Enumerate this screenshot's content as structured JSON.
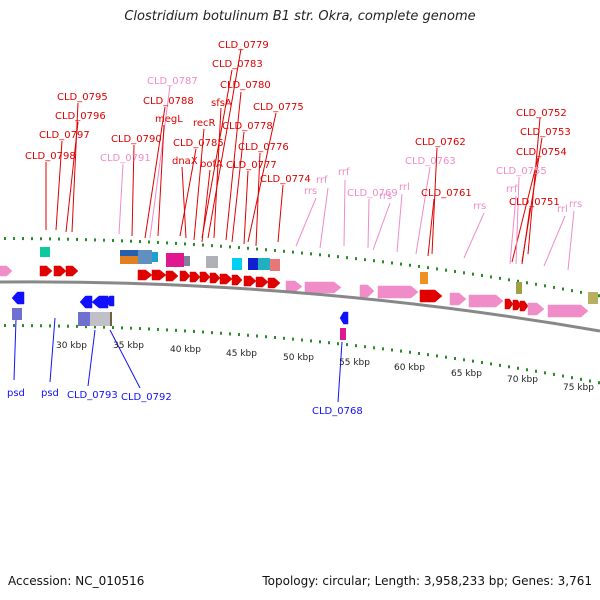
{
  "title": "Clostridium botulinum B1 str. Okra, complete genome",
  "footer": {
    "accession": "Accession: NC_010516",
    "summary": "Topology: circular; Length: 3,958,233 bp; Genes: 3,761"
  },
  "colors": {
    "red": "#e00000",
    "pink": "#f08cc8",
    "blue": "#1010ff",
    "backbone": "#888888",
    "tick": "#2a8a2a"
  },
  "ticks": [
    {
      "label": "30 kbp",
      "kb": 30
    },
    {
      "label": "35 kbp",
      "kb": 35
    },
    {
      "label": "40 kbp",
      "kb": 40
    },
    {
      "label": "45 kbp",
      "kb": 45
    },
    {
      "label": "50 kbp",
      "kb": 50
    },
    {
      "label": "55 kbp",
      "kb": 55
    },
    {
      "label": "60 kbp",
      "kb": 60
    },
    {
      "label": "65 kbp",
      "kb": 65
    },
    {
      "label": "70 kbp",
      "kb": 70
    },
    {
      "label": "75 kbp",
      "kb": 75
    }
  ],
  "top_labels": [
    {
      "text": "CLD_0779",
      "kind": "red"
    },
    {
      "text": "CLD_0783",
      "kind": "red"
    },
    {
      "text": "CLD_0787",
      "kind": "pink"
    },
    {
      "text": "CLD_0780",
      "kind": "red"
    },
    {
      "text": "CLD_0795",
      "kind": "red"
    },
    {
      "text": "CLD_0788",
      "kind": "red"
    },
    {
      "text": "sfsA",
      "kind": "red"
    },
    {
      "text": "CLD_0775",
      "kind": "red"
    },
    {
      "text": "CLD_0752",
      "kind": "red"
    },
    {
      "text": "CLD_0796",
      "kind": "red"
    },
    {
      "text": "megL",
      "kind": "red"
    },
    {
      "text": "recR",
      "kind": "red"
    },
    {
      "text": "CLD_0778",
      "kind": "red"
    },
    {
      "text": "CLD_0797",
      "kind": "red"
    },
    {
      "text": "CLD_0790",
      "kind": "red"
    },
    {
      "text": "CLD_0785",
      "kind": "red"
    },
    {
      "text": "CLD_0776",
      "kind": "red"
    },
    {
      "text": "CLD_0762",
      "kind": "red"
    },
    {
      "text": "CLD_0753",
      "kind": "red"
    },
    {
      "text": "CLD_0798",
      "kind": "red"
    },
    {
      "text": "CLD_0791",
      "kind": "pink"
    },
    {
      "text": "dnaX",
      "kind": "red"
    },
    {
      "text": "bofA",
      "kind": "red"
    },
    {
      "text": "CLD_0777",
      "kind": "red"
    },
    {
      "text": "CLD_0763",
      "kind": "pink"
    },
    {
      "text": "CLD_0754",
      "kind": "red"
    },
    {
      "text": "rrf",
      "kind": "pink"
    },
    {
      "text": "CLD_0755",
      "kind": "pink"
    },
    {
      "text": "CLD_0774",
      "kind": "red"
    },
    {
      "text": "rrf",
      "kind": "pink"
    },
    {
      "text": "rrs",
      "kind": "pink"
    },
    {
      "text": "CLD_0769",
      "kind": "pink"
    },
    {
      "text": "rrl",
      "kind": "pink"
    },
    {
      "text": "CLD_0761",
      "kind": "red"
    },
    {
      "text": "rrf",
      "kind": "pink"
    },
    {
      "text": "rrs",
      "kind": "pink"
    },
    {
      "text": "rrs",
      "kind": "pink"
    },
    {
      "text": "CLD_0751",
      "kind": "red"
    },
    {
      "text": "rrl",
      "kind": "pink"
    },
    {
      "text": "rrs",
      "kind": "pink"
    }
  ],
  "bottom_labels": [
    {
      "text": "psd"
    },
    {
      "text": "psd"
    },
    {
      "text": "CLD_0793"
    },
    {
      "text": "CLD_0792"
    },
    {
      "text": "CLD_0768"
    }
  ]
}
